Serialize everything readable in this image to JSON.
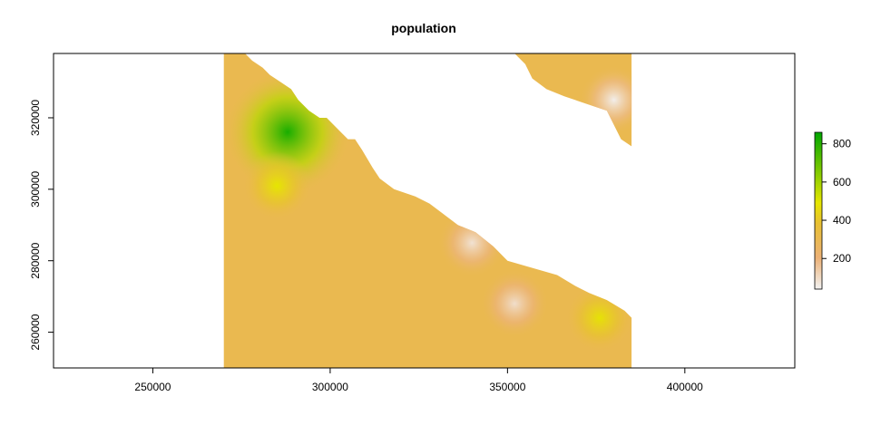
{
  "chart_data": {
    "type": "heatmap",
    "title": "population",
    "xlabel": "",
    "ylabel": "",
    "xlim": [
      222000,
      431000
    ],
    "ylim": [
      250000,
      338000
    ],
    "x_ticks": [
      250000,
      300000,
      350000,
      400000
    ],
    "y_ticks": [
      260000,
      280000,
      300000,
      320000
    ],
    "x_tick_labels": [
      "250000",
      "300000",
      "350000",
      "400000"
    ],
    "y_tick_labels": [
      "260000",
      "280000",
      "300000",
      "320000"
    ],
    "raster_extent": {
      "xmin": 270000,
      "xmax": 385000,
      "ymin": 250000,
      "ymax": 338000
    },
    "grid": false,
    "legend": {
      "type": "colorbar",
      "placement": "right",
      "range": [
        40,
        860
      ],
      "ticks": [
        200,
        400,
        600,
        800
      ],
      "tick_labels": [
        "200",
        "400",
        "600",
        "800"
      ],
      "colors": [
        "#f2f2f2",
        "#ecb176",
        "#e8c032",
        "#e6e600",
        "#00a600"
      ]
    },
    "hotspots": [
      {
        "name": "green peak",
        "x": 288000,
        "y": 316000,
        "value": 820
      },
      {
        "name": "yellow south",
        "x": 285000,
        "y": 301000,
        "value": 480
      },
      {
        "name": "yellow SE",
        "x": 376000,
        "y": 264000,
        "value": 470
      },
      {
        "name": "low NE",
        "x": 380000,
        "y": 325000,
        "value": 50
      },
      {
        "name": "low mid",
        "x": 340000,
        "y": 285000,
        "value": 80
      },
      {
        "name": "low SE",
        "x": 352000,
        "y": 268000,
        "value": 90
      }
    ],
    "background_value": 300,
    "coastline": [
      [
        271000,
        338000
      ],
      [
        276000,
        338000
      ],
      [
        278000,
        336000
      ],
      [
        281000,
        334000
      ],
      [
        283000,
        332000
      ],
      [
        286000,
        330000
      ],
      [
        289000,
        328000
      ],
      [
        291000,
        325000
      ],
      [
        294000,
        322000
      ],
      [
        297000,
        320000
      ],
      [
        299000,
        320000
      ],
      [
        301000,
        318000
      ],
      [
        303000,
        316000
      ],
      [
        305000,
        314000
      ],
      [
        307000,
        314000
      ],
      [
        309000,
        311000
      ],
      [
        312000,
        306000
      ],
      [
        314000,
        303000
      ],
      [
        318000,
        300000
      ],
      [
        324000,
        298000
      ],
      [
        328000,
        296000
      ],
      [
        332000,
        293000
      ],
      [
        336000,
        290000
      ],
      [
        341000,
        288000
      ],
      [
        346000,
        284000
      ],
      [
        350000,
        280000
      ],
      [
        357000,
        278000
      ],
      [
        364000,
        276000
      ],
      [
        369000,
        273000
      ],
      [
        373000,
        271000
      ],
      [
        378000,
        269000
      ],
      [
        383000,
        266000
      ],
      [
        385000,
        264000
      ],
      [
        385000,
        250000
      ],
      [
        270000,
        250000
      ],
      [
        270000,
        338000
      ]
    ],
    "ne_region": [
      [
        352000,
        338000
      ],
      [
        385000,
        338000
      ],
      [
        385000,
        312000
      ],
      [
        382000,
        314000
      ],
      [
        378000,
        322000
      ],
      [
        372000,
        324000
      ],
      [
        366000,
        326000
      ],
      [
        361000,
        328000
      ],
      [
        357000,
        331000
      ],
      [
        355000,
        335000
      ]
    ]
  }
}
